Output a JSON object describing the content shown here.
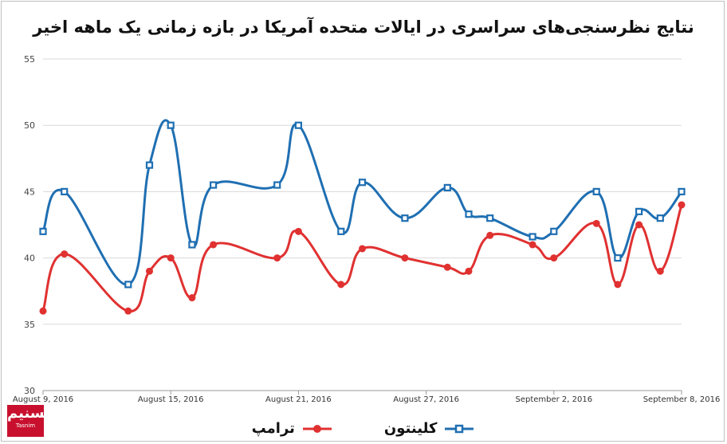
{
  "title": "نتایج نظرسنجی‌های سراسری در ایالات متحده آمریکا در بازه زمانی یک ماهه اخیر",
  "logo": {
    "mark": "تسنیم",
    "text": "Tasnim"
  },
  "chart_data": {
    "type": "line",
    "title": "نتایج نظرسنجی‌های سراسری در ایالات متحده آمریکا در بازه زمانی یک ماهه اخیر",
    "xlabel": "",
    "ylabel": "",
    "ylim": [
      30,
      55
    ],
    "yticks": [
      30,
      35,
      40,
      45,
      50,
      55
    ],
    "xlim": [
      "2016-08-09",
      "2016-09-08"
    ],
    "xtick_labels": [
      "August 9, 2016",
      "August 15, 2016",
      "August 21, 2016",
      "August 27, 2016",
      "September 2, 2016",
      "September 8, 2016"
    ],
    "grid": true,
    "legend_position": "bottom",
    "series": [
      {
        "name": "کلینتون",
        "color": "#1f6fb2",
        "marker": "square",
        "points": [
          [
            "2016-08-09",
            42
          ],
          [
            "2016-08-10",
            45
          ],
          [
            "2016-08-13",
            38
          ],
          [
            "2016-08-14",
            47
          ],
          [
            "2016-08-15",
            50
          ],
          [
            "2016-08-16",
            41
          ],
          [
            "2016-08-17",
            45.5
          ],
          [
            "2016-08-20",
            45.5
          ],
          [
            "2016-08-21",
            50
          ],
          [
            "2016-08-23",
            42
          ],
          [
            "2016-08-24",
            45.7
          ],
          [
            "2016-08-26",
            43
          ],
          [
            "2016-08-28",
            45.3
          ],
          [
            "2016-08-29",
            43.3
          ],
          [
            "2016-08-30",
            43
          ],
          [
            "2016-09-01",
            41.6
          ],
          [
            "2016-09-02",
            42
          ],
          [
            "2016-09-04",
            45
          ],
          [
            "2016-09-05",
            40
          ],
          [
            "2016-09-06",
            43.5
          ],
          [
            "2016-09-07",
            43
          ],
          [
            "2016-09-08",
            45
          ]
        ]
      },
      {
        "name": "ترامپ",
        "color": "#e03131",
        "marker": "circle",
        "points": [
          [
            "2016-08-09",
            36
          ],
          [
            "2016-08-10",
            40.3
          ],
          [
            "2016-08-13",
            36
          ],
          [
            "2016-08-14",
            39
          ],
          [
            "2016-08-15",
            40
          ],
          [
            "2016-08-16",
            37
          ],
          [
            "2016-08-17",
            41
          ],
          [
            "2016-08-20",
            40
          ],
          [
            "2016-08-21",
            42
          ],
          [
            "2016-08-23",
            38
          ],
          [
            "2016-08-24",
            40.7
          ],
          [
            "2016-08-26",
            40
          ],
          [
            "2016-08-28",
            39.3
          ],
          [
            "2016-08-29",
            39
          ],
          [
            "2016-08-30",
            41.7
          ],
          [
            "2016-09-01",
            41
          ],
          [
            "2016-09-02",
            40
          ],
          [
            "2016-09-04",
            42.6
          ],
          [
            "2016-09-05",
            38
          ],
          [
            "2016-09-06",
            42.5
          ],
          [
            "2016-09-07",
            39
          ],
          [
            "2016-09-08",
            44
          ]
        ]
      }
    ]
  }
}
